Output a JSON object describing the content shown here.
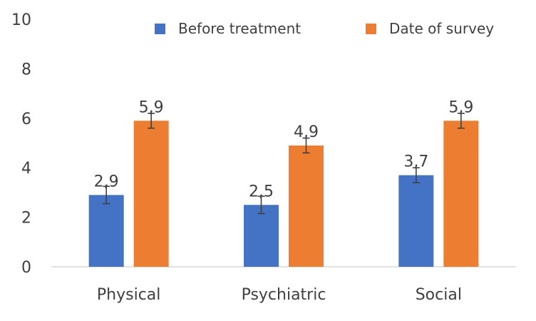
{
  "chart_data": {
    "type": "bar",
    "categories": [
      "Physical",
      "Psychiatric",
      "Social"
    ],
    "series": [
      {
        "name": "Before treatment",
        "color": "#4472C4",
        "values": [
          2.9,
          2.5,
          3.7
        ],
        "labels": [
          "2,9",
          "2,5",
          "3,7"
        ],
        "error": [
          0.35,
          0.35,
          0.3
        ]
      },
      {
        "name": "Date of survey",
        "color": "#ED7D31",
        "values": [
          5.9,
          4.9,
          5.9
        ],
        "labels": [
          "5,9",
          "4,9",
          "5,9"
        ],
        "error": [
          0.3,
          0.3,
          0.3
        ]
      }
    ],
    "ylim": [
      0,
      10
    ],
    "yticks": [
      "0",
      "2",
      "4",
      "6",
      "8",
      "10"
    ],
    "grid": false,
    "legend_position": "top-right",
    "error_bars": true
  }
}
